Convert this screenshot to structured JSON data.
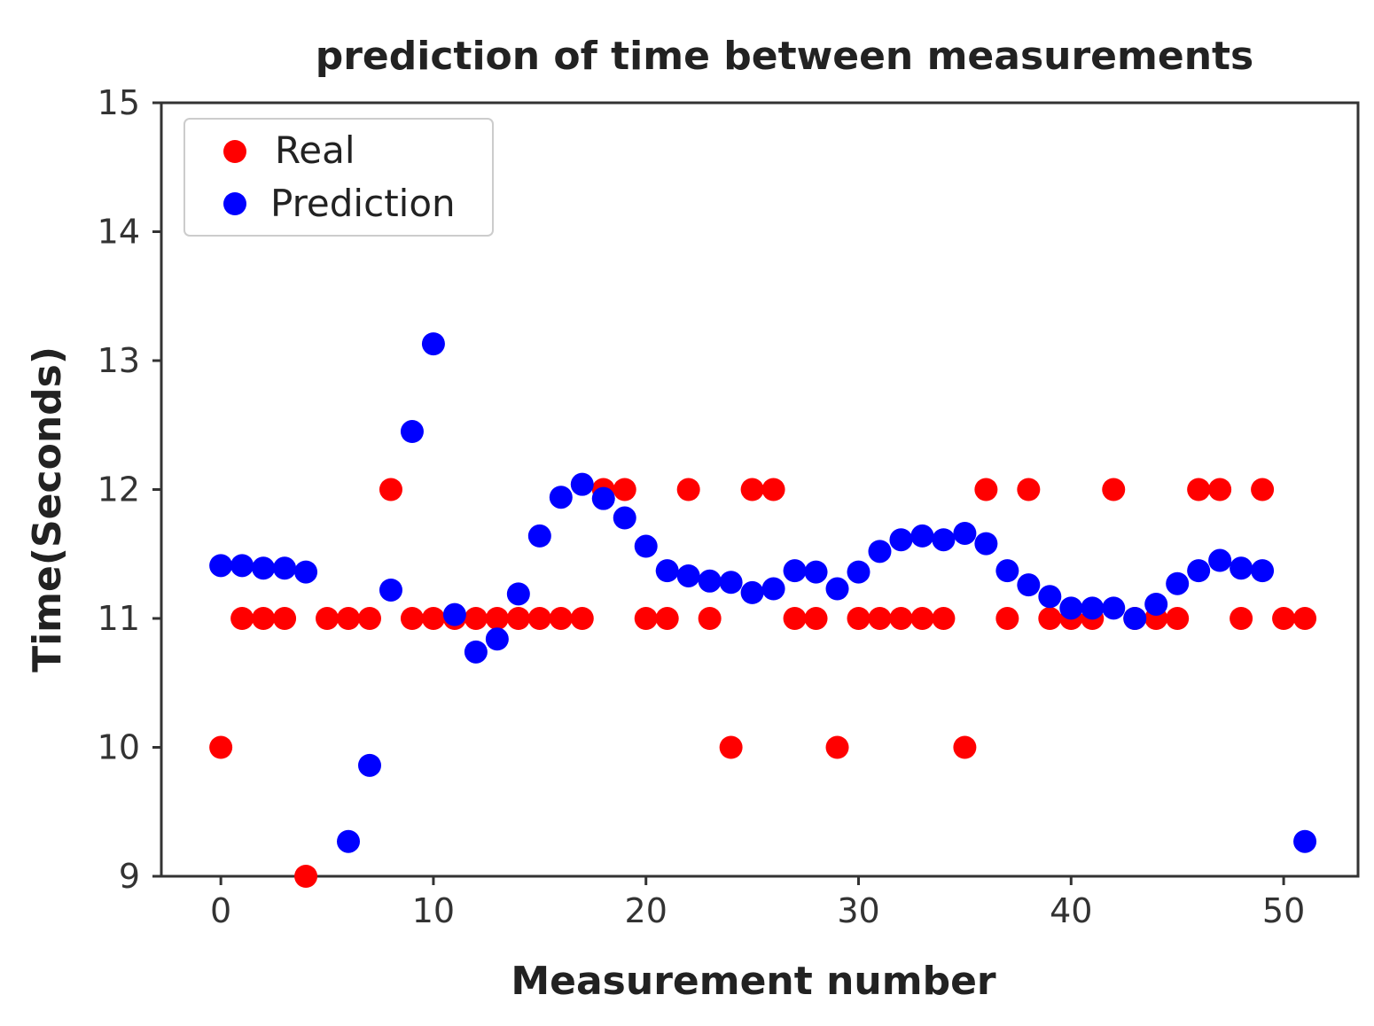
{
  "chart_data": {
    "type": "scatter",
    "title": "prediction of time between measurements",
    "xlabel": "Measurement number",
    "ylabel": "Time(Seconds)",
    "xlim": [
      -2.8,
      53.5
    ],
    "ylim": [
      9,
      15
    ],
    "xticks": [
      0,
      10,
      20,
      30,
      40,
      50
    ],
    "yticks": [
      9,
      10,
      11,
      12,
      13,
      14,
      15
    ],
    "grid": false,
    "legend_position": "top-left",
    "series": [
      {
        "name": "Real",
        "color": "#ff0000",
        "x": [
          0,
          1,
          2,
          3,
          4,
          5,
          6,
          7,
          8,
          9,
          10,
          11,
          12,
          13,
          14,
          15,
          16,
          17,
          18,
          19,
          20,
          21,
          22,
          23,
          24,
          25,
          26,
          27,
          28,
          29,
          30,
          31,
          32,
          33,
          34,
          35,
          36,
          37,
          38,
          39,
          40,
          41,
          42,
          43,
          44,
          45,
          46,
          47,
          48,
          49,
          50,
          51
        ],
        "y": [
          10,
          11,
          11,
          11,
          9,
          11,
          11,
          11,
          12,
          11,
          11,
          11,
          11,
          11,
          11,
          11,
          11,
          11,
          12,
          12,
          11,
          11,
          12,
          11,
          10,
          12,
          12,
          11,
          11,
          10,
          11,
          11,
          11,
          11,
          11,
          10,
          12,
          11,
          12,
          11,
          11,
          11,
          12,
          11,
          11,
          11,
          12,
          12,
          11,
          12,
          11,
          11
        ]
      },
      {
        "name": "Prediction",
        "color": "#0000ff",
        "x": [
          0,
          1,
          2,
          3,
          4,
          5,
          6,
          7,
          8,
          9,
          10,
          11,
          12,
          13,
          14,
          15,
          16,
          17,
          18,
          19,
          20,
          21,
          22,
          23,
          24,
          25,
          26,
          27,
          28,
          29,
          30,
          31,
          32,
          33,
          34,
          35,
          36,
          37,
          38,
          39,
          40,
          41,
          42,
          43,
          44,
          45,
          46,
          47,
          48,
          49,
          51
        ],
        "y": [
          11.41,
          11.41,
          11.39,
          11.39,
          11.36,
          null,
          9.27,
          9.86,
          11.22,
          12.45,
          13.13,
          11.03,
          10.74,
          10.84,
          11.19,
          11.64,
          11.94,
          12.04,
          11.93,
          11.78,
          11.56,
          11.37,
          11.33,
          11.29,
          11.28,
          11.2,
          11.23,
          11.37,
          11.36,
          11.23,
          11.36,
          11.52,
          11.61,
          11.64,
          11.61,
          11.66,
          11.58,
          11.37,
          11.26,
          11.17,
          11.08,
          11.08,
          11.08,
          11.0,
          11.11,
          11.27,
          11.37,
          11.45,
          11.39,
          11.37,
          9.27
        ]
      }
    ]
  }
}
